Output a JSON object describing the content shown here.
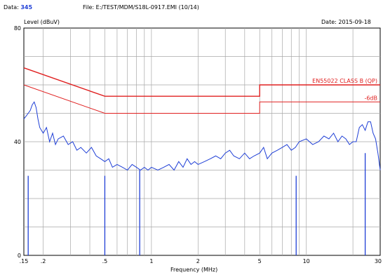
{
  "header": {
    "data_label": "Data:",
    "data_value": "345",
    "file_label": "File:",
    "file_value": "E:/TEST/MDM/S18L-0917.EMI",
    "file_suffix": "(10/14)",
    "date_label": "Date:",
    "date_value": "2015-09-18"
  },
  "chart_data": {
    "type": "line",
    "ylabel": "Level (dBuV)",
    "xlabel": "Frequency (MHz)",
    "x_scale": "log",
    "xlim": [
      0.15,
      30
    ],
    "ylim": [
      0,
      80
    ],
    "grid": true,
    "x_tick_labels": [
      {
        "x": 0.15,
        "label": ".15"
      },
      {
        "x": 0.2,
        "label": ".2"
      },
      {
        "x": 0.5,
        "label": ".5"
      },
      {
        "x": 1,
        "label": "1"
      },
      {
        "x": 2,
        "label": "2"
      },
      {
        "x": 5,
        "label": "5"
      },
      {
        "x": 10,
        "label": "10"
      },
      {
        "x": 30,
        "label": "30"
      }
    ],
    "y_tick_labels": [
      {
        "y": 80,
        "label": "80"
      },
      {
        "y": 40,
        "label": "40"
      },
      {
        "y": 0,
        "label": "0"
      }
    ],
    "limit_lines": [
      {
        "name": "EN55022 CLASS B (QP)",
        "color": "#e02020",
        "points": [
          [
            0.15,
            66
          ],
          [
            0.5,
            56
          ],
          [
            5,
            56
          ],
          [
            5,
            60
          ],
          [
            30,
            60
          ]
        ]
      },
      {
        "name": "-6dB",
        "color": "#e02020",
        "points": [
          [
            0.15,
            60
          ],
          [
            0.5,
            50
          ],
          [
            5,
            50
          ],
          [
            5,
            54
          ],
          [
            30,
            54
          ]
        ]
      }
    ],
    "series": [
      {
        "color": "#1f3fd6",
        "x": [
          0.15,
          0.155,
          0.16,
          0.165,
          0.17,
          0.175,
          0.18,
          0.185,
          0.19,
          0.2,
          0.21,
          0.22,
          0.23,
          0.24,
          0.25,
          0.27,
          0.29,
          0.31,
          0.33,
          0.35,
          0.38,
          0.41,
          0.44,
          0.47,
          0.5,
          0.53,
          0.56,
          0.6,
          0.65,
          0.7,
          0.75,
          0.8,
          0.85,
          0.9,
          0.95,
          1.0,
          1.1,
          1.2,
          1.3,
          1.4,
          1.5,
          1.6,
          1.7,
          1.8,
          1.9,
          2.0,
          2.2,
          2.4,
          2.6,
          2.8,
          3.0,
          3.2,
          3.4,
          3.7,
          4.0,
          4.3,
          4.6,
          5.0,
          5.3,
          5.6,
          6.0,
          6.5,
          7.0,
          7.5,
          8.0,
          8.5,
          9.0,
          10,
          11,
          12,
          13,
          14,
          15,
          16,
          17,
          18,
          19,
          20,
          21,
          22,
          23,
          24,
          25,
          26,
          27,
          28,
          29,
          30
        ],
        "y": [
          48,
          49,
          50,
          51,
          53,
          54,
          52,
          48,
          45,
          43,
          45,
          40,
          43,
          39,
          41,
          42,
          39,
          40,
          37,
          38,
          36,
          38,
          35,
          34,
          33,
          34,
          31,
          32,
          31,
          30,
          32,
          31,
          30,
          31,
          30,
          31,
          30,
          31,
          32,
          30,
          33,
          31,
          34,
          32,
          33,
          32,
          33,
          34,
          35,
          34,
          36,
          37,
          35,
          34,
          36,
          34,
          35,
          36,
          38,
          34,
          36,
          37,
          38,
          39,
          37,
          38,
          40,
          41,
          39,
          40,
          42,
          41,
          43,
          40,
          42,
          41,
          39,
          40,
          40,
          45,
          46,
          44,
          47,
          47,
          43,
          41,
          36,
          30
        ]
      },
      {
        "color": "#1f3fd6",
        "type": "spikes",
        "x": [
          0.16,
          0.18,
          0.5,
          0.57,
          0.84,
          2.98,
          5.0,
          8.6,
          8.9,
          22,
          24,
          27
        ],
        "y": [
          28,
          0,
          28,
          0,
          30,
          0,
          0,
          28,
          0,
          0,
          36,
          0
        ]
      }
    ]
  }
}
